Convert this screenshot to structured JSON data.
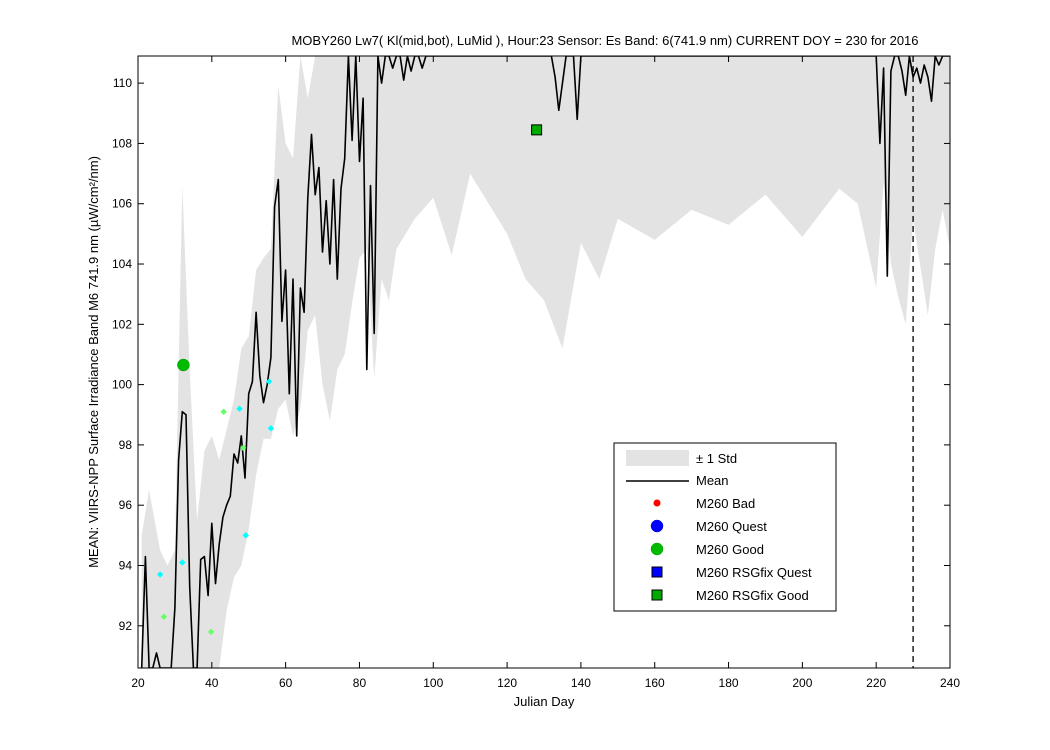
{
  "chart_data": {
    "type": "line",
    "title": "MOBY260   Lw7( Kl(mid,bot), LuMid ),   Hour:23 Sensor: Es Band: 6(741.9 nm)   CURRENT DOY = 230 for 2016",
    "xlabel": "Julian Day",
    "ylabel": "MEAN: VIIRS-NPP Surface Irradiance Band M6 741.9 nm (µW/cm²/nm)",
    "xlim": [
      20,
      240
    ],
    "ylim": [
      90.6,
      110.9
    ],
    "xticks": [
      20,
      40,
      60,
      80,
      100,
      120,
      140,
      160,
      180,
      200,
      220,
      240
    ],
    "yticks": [
      92,
      94,
      96,
      98,
      100,
      102,
      104,
      106,
      108,
      110
    ],
    "current_doy": 230,
    "grid": false,
    "legend_placement": "lower-right",
    "legend": [
      "± 1 Std",
      "Mean",
      "M260 Bad",
      "M260 Quest",
      "M260 Good",
      "M260 RSGfix Quest",
      "M260 RSGfix Good"
    ],
    "colors": {
      "std_band": "#e3e3e3",
      "mean": "#000000",
      "bad": "#ff0000",
      "quest": "#0000ff",
      "good": "#00bb00",
      "rsg_quest": "#0000ff",
      "rsg_good": "#00aa00",
      "cyan_markers": "#00ffff",
      "lightgreen_markers": "#66ff66"
    },
    "series": [
      {
        "name": "Mean",
        "x": [
          21,
          22,
          23,
          24,
          25,
          26,
          27,
          28,
          29,
          30,
          31,
          32,
          33,
          34,
          35,
          36,
          37,
          38,
          39,
          40,
          41,
          42,
          43,
          44,
          45,
          46,
          47,
          48,
          49,
          50,
          51,
          52,
          53,
          54,
          55,
          56,
          57,
          58,
          59,
          60,
          61,
          62,
          63,
          64,
          65,
          66,
          67,
          68,
          69,
          70,
          71,
          72,
          73,
          74,
          75,
          76,
          77,
          78,
          79,
          80,
          81,
          82,
          83,
          84,
          85,
          86,
          87,
          88,
          89,
          90,
          91,
          92,
          93,
          94,
          95,
          96,
          97,
          98,
          100,
          102,
          104,
          106,
          108,
          110,
          112,
          114,
          116,
          118,
          119,
          120,
          122,
          124,
          126,
          128,
          130,
          132,
          133,
          134,
          136,
          138,
          139,
          140,
          142,
          144,
          146,
          148,
          150,
          160,
          170,
          180,
          190,
          200,
          210,
          218,
          220,
          221,
          222,
          223,
          224,
          225,
          226,
          227,
          228,
          229,
          230,
          231,
          232,
          233,
          234,
          235,
          236,
          237,
          238,
          239,
          240
        ],
        "values": [
          90.6,
          94.3,
          90.6,
          90.6,
          91.1,
          90.6,
          90.6,
          90.6,
          90.6,
          92.6,
          97.5,
          99.1,
          99.0,
          93.3,
          90.6,
          90.6,
          94.2,
          94.3,
          93.0,
          95.4,
          93.4,
          94.7,
          95.6,
          96.0,
          96.3,
          97.7,
          97.4,
          98.3,
          96.9,
          99.7,
          100.1,
          102.4,
          100.3,
          99.4,
          100.0,
          100.9,
          105.9,
          106.8,
          102.1,
          103.8,
          99.7,
          103.5,
          98.3,
          103.2,
          102.4,
          106.2,
          108.3,
          106.3,
          107.2,
          104.4,
          106.1,
          104.0,
          106.8,
          103.5,
          106.5,
          107.5,
          110.9,
          108.1,
          110.9,
          107.4,
          109.5,
          100.5,
          106.6,
          101.7,
          110.9,
          110.0,
          110.9,
          110.9,
          110.5,
          110.9,
          110.9,
          110.1,
          110.9,
          110.4,
          110.9,
          110.9,
          110.5,
          110.9,
          110.9,
          110.9,
          110.9,
          110.9,
          110.9,
          110.9,
          110.9,
          110.9,
          110.9,
          110.9,
          110.9,
          110.9,
          110.9,
          110.9,
          110.9,
          110.9,
          110.9,
          110.9,
          110.2,
          109.1,
          110.9,
          110.9,
          108.8,
          110.9,
          110.9,
          110.9,
          110.9,
          110.9,
          110.9,
          110.9,
          110.9,
          110.9,
          110.9,
          110.9,
          110.9,
          110.9,
          110.9,
          108.0,
          110.5,
          103.6,
          110.4,
          110.9,
          110.9,
          110.4,
          109.6,
          110.9,
          110.2,
          110.5,
          110.0,
          110.6,
          110.2,
          109.4,
          110.9,
          110.6,
          110.9,
          110.9,
          110.9
        ]
      }
    ],
    "std_band": {
      "x": [
        21,
        23,
        26,
        28,
        30,
        32,
        34,
        36,
        38,
        40,
        42,
        44,
        46,
        48,
        50,
        52,
        54,
        56,
        58,
        60,
        62,
        64,
        66,
        68,
        70,
        72,
        74,
        76,
        78,
        80,
        82,
        84,
        86,
        88,
        90,
        95,
        100,
        105,
        110,
        115,
        120,
        125,
        130,
        135,
        140,
        145,
        150,
        160,
        170,
        180,
        190,
        200,
        210,
        215,
        220,
        222,
        224,
        226,
        228,
        230,
        232,
        234,
        236,
        238,
        240
      ],
      "upper": [
        95.0,
        96.5,
        94.5,
        94.0,
        94.5,
        106.6,
        100.5,
        95.5,
        97.8,
        98.3,
        97.5,
        98.5,
        99.5,
        101.2,
        101.6,
        103.8,
        104.2,
        104.5,
        109.9,
        108.0,
        107.5,
        110.9,
        109.5,
        110.9,
        110.9,
        110.9,
        110.9,
        110.9,
        110.9,
        110.9,
        110.9,
        110.9,
        110.9,
        110.9,
        110.9,
        110.9,
        110.9,
        110.9,
        110.9,
        110.9,
        110.9,
        110.9,
        110.9,
        110.9,
        110.9,
        110.9,
        110.9,
        110.9,
        110.9,
        110.9,
        110.9,
        110.9,
        110.9,
        110.9,
        110.9,
        110.9,
        110.9,
        110.9,
        110.9,
        110.9,
        110.9,
        110.9,
        110.9,
        110.9,
        110.9
      ],
      "lower": [
        90.6,
        90.6,
        90.6,
        90.6,
        90.6,
        90.6,
        90.6,
        90.6,
        90.6,
        90.6,
        90.6,
        92.5,
        93.6,
        94.0,
        95.2,
        97.0,
        98.2,
        98.2,
        99.2,
        99.5,
        98.3,
        99.2,
        101.8,
        102.3,
        100.0,
        98.8,
        100.5,
        101.0,
        102.7,
        104.2,
        104.5,
        100.2,
        103.5,
        102.8,
        104.5,
        105.5,
        106.2,
        104.3,
        107.0,
        106.0,
        105.0,
        103.5,
        102.8,
        101.2,
        104.7,
        103.5,
        105.5,
        104.8,
        105.8,
        105.3,
        106.3,
        104.9,
        106.5,
        106.0,
        103.2,
        106.7,
        104.0,
        102.9,
        102.0,
        105.5,
        103.9,
        102.3,
        104.5,
        105.8,
        104.5
      ]
    },
    "m260_good": [
      {
        "x": 32.3,
        "y": 100.65
      }
    ],
    "m260_rsgfix_good": [
      {
        "x": 128.0,
        "y": 108.45
      }
    ],
    "cyan_points": [
      {
        "x": 26.0,
        "y": 93.7
      },
      {
        "x": 32.0,
        "y": 94.1
      },
      {
        "x": 47.5,
        "y": 99.2
      },
      {
        "x": 49.2,
        "y": 95.0
      },
      {
        "x": 55.5,
        "y": 100.1
      },
      {
        "x": 56.0,
        "y": 98.55
      }
    ],
    "lightgreen_points": [
      {
        "x": 27.0,
        "y": 92.3
      },
      {
        "x": 39.8,
        "y": 91.8
      },
      {
        "x": 43.2,
        "y": 99.1
      },
      {
        "x": 48.5,
        "y": 97.9
      }
    ]
  }
}
